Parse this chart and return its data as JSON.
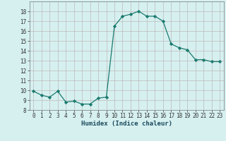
{
  "x": [
    0,
    1,
    2,
    3,
    4,
    5,
    6,
    7,
    8,
    9,
    10,
    11,
    12,
    13,
    14,
    15,
    16,
    17,
    18,
    19,
    20,
    21,
    22,
    23
  ],
  "y": [
    9.9,
    9.5,
    9.3,
    9.9,
    8.8,
    8.9,
    8.6,
    8.6,
    9.2,
    9.3,
    16.5,
    17.5,
    17.7,
    18.0,
    17.5,
    17.5,
    17.0,
    14.7,
    14.3,
    14.1,
    13.1,
    13.1,
    12.9,
    12.9
  ],
  "xlabel": "Humidex (Indice chaleur)",
  "xlim": [
    -0.5,
    23.5
  ],
  "ylim": [
    8,
    19
  ],
  "yticks": [
    8,
    9,
    10,
    11,
    12,
    13,
    14,
    15,
    16,
    17,
    18
  ],
  "xticks": [
    0,
    1,
    2,
    3,
    4,
    5,
    6,
    7,
    8,
    9,
    10,
    11,
    12,
    13,
    14,
    15,
    16,
    17,
    18,
    19,
    20,
    21,
    22,
    23
  ],
  "line_color": "#1a7a6e",
  "marker": "D",
  "marker_size": 2.2,
  "bg_color": "#d6f0f0",
  "grid_color": "#c0b8b8",
  "tick_fontsize": 5.5,
  "xlabel_fontsize": 6.5
}
